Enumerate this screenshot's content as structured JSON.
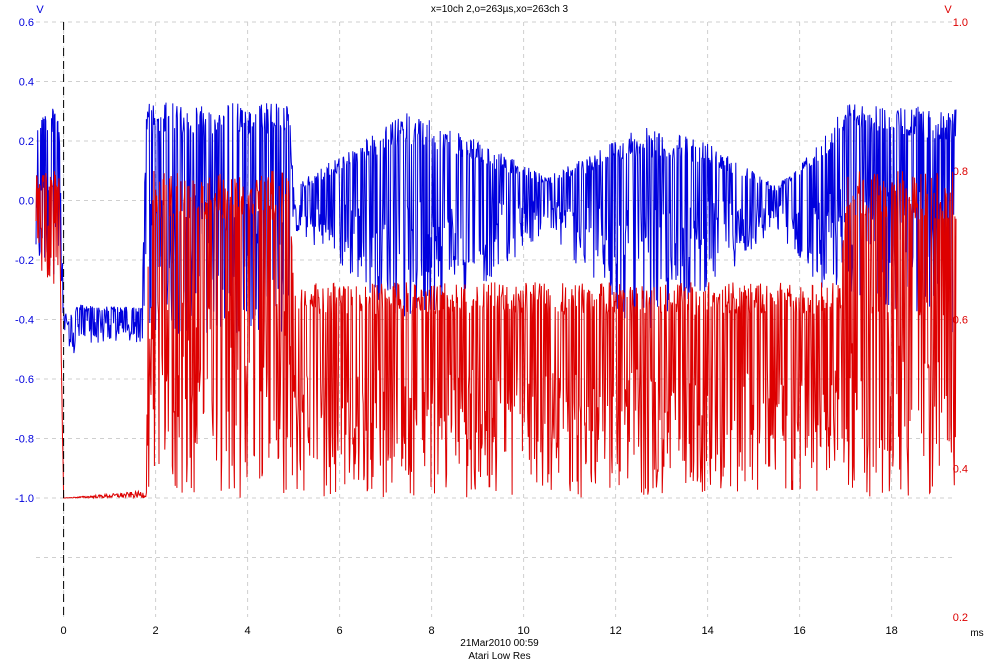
{
  "header": {
    "title": "x=10ch 2,o=263µs,xo=263ch 3"
  },
  "footer": {
    "timestamp": "21Mar2010  00:59",
    "description": "Atari Low Res"
  },
  "colors": {
    "ch_blue": "#0000dd",
    "ch_red": "#dd0000",
    "grid": "#cfcfcf",
    "cursor": "#000000"
  },
  "chart_data": {
    "type": "line",
    "title": "x=10ch 2,o=263µs,xo=263ch 3",
    "xlabel": "ms",
    "x_range": [
      -0.6,
      19.4
    ],
    "x_ticks": [
      "0",
      "2",
      "4",
      "6",
      "8",
      "10",
      "12",
      "14",
      "16",
      "18"
    ],
    "grid": true,
    "cursor_x": 0,
    "left_axis": {
      "unit": "V",
      "range": [
        -1.4,
        0.6
      ],
      "tick_labels": [
        "0.6",
        "0.4",
        "0.2",
        "0.0",
        "-0.2",
        "-0.4",
        "-0.6",
        "-0.8",
        "-1.0"
      ]
    },
    "right_axis": {
      "unit": "V",
      "range": [
        0.2,
        1.0
      ],
      "tick_labels": [
        "1.0",
        "0.8",
        "0.6",
        "0.4",
        "0.2"
      ]
    },
    "series": [
      {
        "axis": "left",
        "color": "#0000dd",
        "approx_envelope": [
          {
            "t": -0.6,
            "min": -0.25,
            "max": 0.31
          },
          {
            "t": -0.1,
            "min": -0.25,
            "max": 0.31
          },
          {
            "t": 0.0,
            "min": -0.45,
            "max": -0.35
          },
          {
            "t": 0.1,
            "min": -0.6,
            "max": -0.4
          },
          {
            "t": 0.3,
            "min": -0.48,
            "max": -0.35
          },
          {
            "t": 1.7,
            "min": -0.48,
            "max": -0.36
          },
          {
            "t": 1.8,
            "min": -0.45,
            "max": 0.33
          },
          {
            "t": 4.9,
            "min": -0.45,
            "max": 0.33
          },
          {
            "t": 5.0,
            "min": -0.1,
            "max": 0.05
          },
          {
            "t": 7.5,
            "min": -0.42,
            "max": 0.3
          },
          {
            "t": 9.0,
            "min": -0.3,
            "max": 0.2
          },
          {
            "t": 10.5,
            "min": -0.1,
            "max": 0.08
          },
          {
            "t": 12.5,
            "min": -0.46,
            "max": 0.25
          },
          {
            "t": 14.0,
            "min": -0.3,
            "max": 0.2
          },
          {
            "t": 15.5,
            "min": -0.1,
            "max": 0.05
          },
          {
            "t": 16.5,
            "min": -0.3,
            "max": 0.22
          },
          {
            "t": 17.0,
            "min": -0.3,
            "max": 0.33
          },
          {
            "t": 19.4,
            "min": -0.45,
            "max": 0.31
          }
        ]
      },
      {
        "axis": "right",
        "color": "#dd0000",
        "approx_envelope": [
          {
            "t": -0.6,
            "min": 0.64,
            "max": 0.8
          },
          {
            "t": -0.1,
            "min": 0.64,
            "max": 0.8
          },
          {
            "t": 0.0,
            "min": 0.36,
            "max": 0.36
          },
          {
            "t": 1.8,
            "min": 0.36,
            "max": 0.37
          },
          {
            "t": 1.85,
            "min": 0.36,
            "max": 0.8
          },
          {
            "t": 4.9,
            "min": 0.36,
            "max": 0.8
          },
          {
            "t": 5.0,
            "min": 0.36,
            "max": 0.65
          },
          {
            "t": 16.9,
            "min": 0.36,
            "max": 0.65
          },
          {
            "t": 17.0,
            "min": 0.36,
            "max": 0.8
          },
          {
            "t": 19.4,
            "min": 0.36,
            "max": 0.8
          }
        ]
      }
    ]
  }
}
